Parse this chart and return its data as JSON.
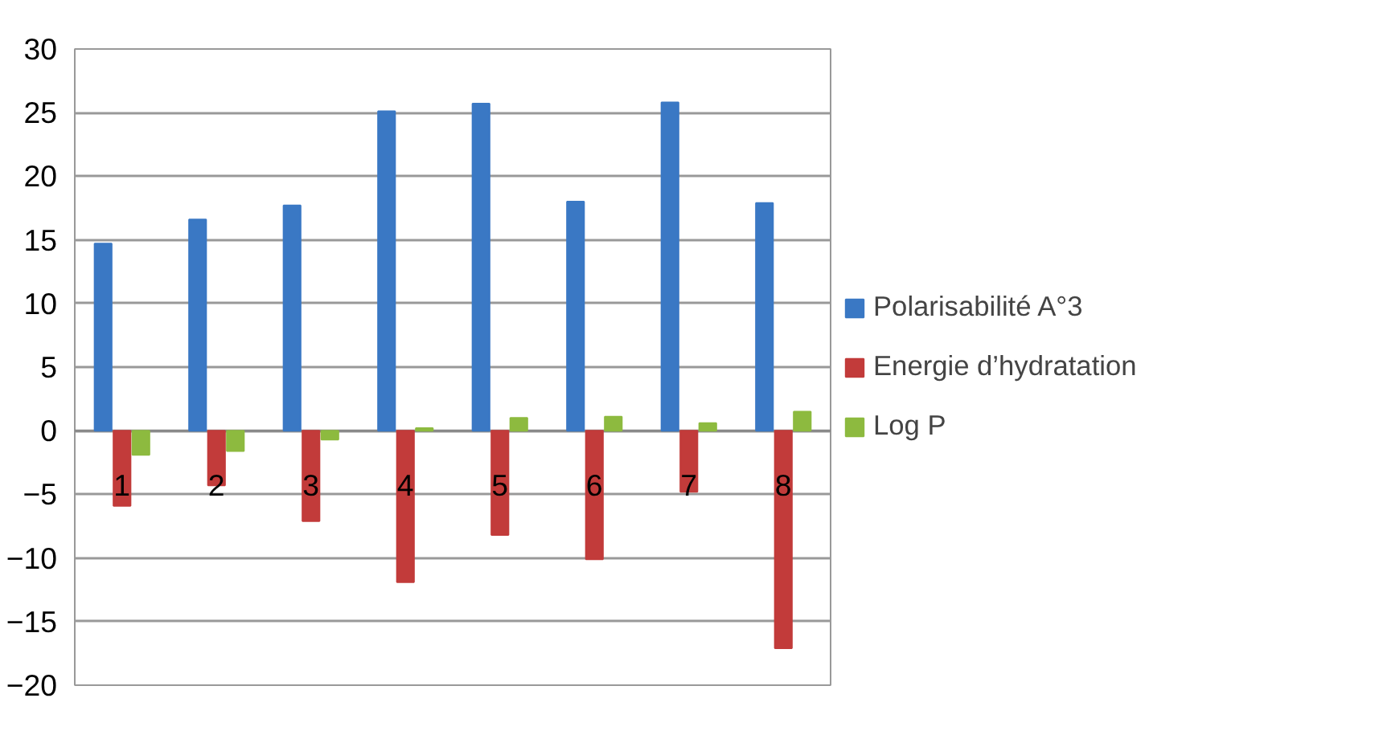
{
  "chart_data": {
    "type": "bar",
    "categories": [
      "1",
      "2",
      "3",
      "4",
      "5",
      "6",
      "7",
      "8"
    ],
    "series": [
      {
        "name": "Polarisabilité A°3",
        "color": "#3a78c4",
        "values": [
          14.7,
          16.6,
          17.7,
          25.1,
          25.7,
          18.0,
          25.8,
          17.9
        ]
      },
      {
        "name": "Energie d’hydratation",
        "color": "#c23b3a",
        "values": [
          -5.9,
          -4.3,
          -7.1,
          -11.9,
          -8.2,
          -10.1,
          -4.8,
          -17.1
        ]
      },
      {
        "name": "Log P",
        "color": "#8dba3f",
        "values": [
          -1.9,
          -1.6,
          -0.7,
          0.2,
          1.0,
          1.1,
          0.6,
          1.5
        ]
      }
    ],
    "ylim": [
      -20,
      30
    ],
    "yticks": [
      -20,
      -15,
      -10,
      -5,
      0,
      5,
      10,
      15,
      20,
      25,
      30
    ],
    "grid": "y",
    "legend": "right"
  }
}
